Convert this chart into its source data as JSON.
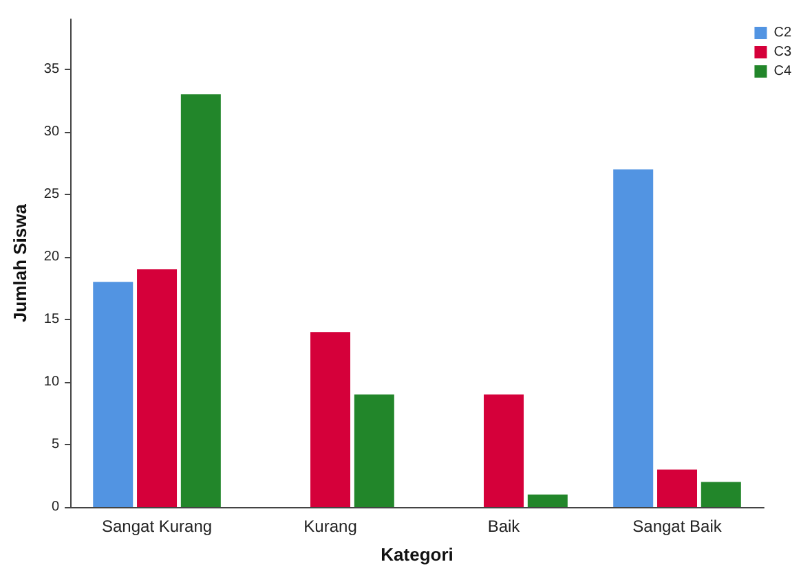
{
  "chart_data": {
    "type": "bar",
    "xlabel": "Kategori",
    "ylabel": "Jumlah Siswa",
    "categories": [
      "Sangat Kurang",
      "Kurang",
      "Baik",
      "Sangat Baik"
    ],
    "series": [
      {
        "name": "C2",
        "color": "#5294e2",
        "values": [
          18,
          0,
          0,
          27
        ]
      },
      {
        "name": "C3",
        "color": "#d5003a",
        "values": [
          19,
          14,
          9,
          3
        ]
      },
      {
        "name": "C4",
        "color": "#22862a",
        "values": [
          33,
          9,
          1,
          2
        ]
      }
    ],
    "ylim": [
      0,
      39
    ],
    "yticks": [
      0,
      5,
      10,
      15,
      20,
      25,
      30,
      35
    ],
    "grid": false,
    "legend": "top right"
  }
}
